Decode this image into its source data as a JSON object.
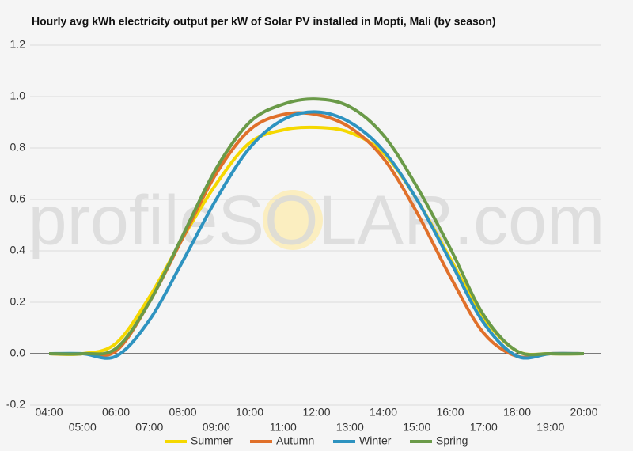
{
  "chart_data": {
    "type": "line",
    "title": "Hourly avg kWh electricity output per kW of Solar PV installed in Mopti, Mali (by season)",
    "watermark": "profileSOLAR.com",
    "categories": [
      "04:00",
      "05:00",
      "06:00",
      "07:00",
      "08:00",
      "09:00",
      "10:00",
      "11:00",
      "12:00",
      "13:00",
      "14:00",
      "15:00",
      "16:00",
      "17:00",
      "18:00",
      "19:00",
      "20:00"
    ],
    "series": [
      {
        "name": "Summer",
        "color": "#f5d800",
        "values": [
          0,
          0,
          0.04,
          0.22,
          0.45,
          0.66,
          0.82,
          0.87,
          0.88,
          0.86,
          0.78,
          0.6,
          0.37,
          0.14,
          0.01,
          0,
          0
        ]
      },
      {
        "name": "Autumn",
        "color": "#e0702a",
        "values": [
          0,
          0,
          0.01,
          0.2,
          0.45,
          0.7,
          0.87,
          0.93,
          0.93,
          0.88,
          0.76,
          0.55,
          0.3,
          0.08,
          -0.01,
          0,
          0
        ]
      },
      {
        "name": "Winter",
        "color": "#2e93c0",
        "values": [
          0,
          0,
          -0.01,
          0.13,
          0.36,
          0.6,
          0.8,
          0.91,
          0.94,
          0.9,
          0.79,
          0.6,
          0.36,
          0.12,
          -0.01,
          0,
          0
        ]
      },
      {
        "name": "Spring",
        "color": "#6a9a48",
        "values": [
          0,
          0,
          0.02,
          0.2,
          0.46,
          0.72,
          0.9,
          0.97,
          0.99,
          0.96,
          0.85,
          0.65,
          0.41,
          0.15,
          0.01,
          0,
          0
        ]
      }
    ],
    "ylim": [
      -0.2,
      1.2
    ],
    "yticks": [
      -0.2,
      {
        "value": 0,
        "label": "0.0"
      },
      0.2,
      0.4,
      0.6,
      0.8,
      {
        "value": 1,
        "label": "1.0"
      },
      1.2
    ],
    "grid": true,
    "legend": "bottom"
  }
}
